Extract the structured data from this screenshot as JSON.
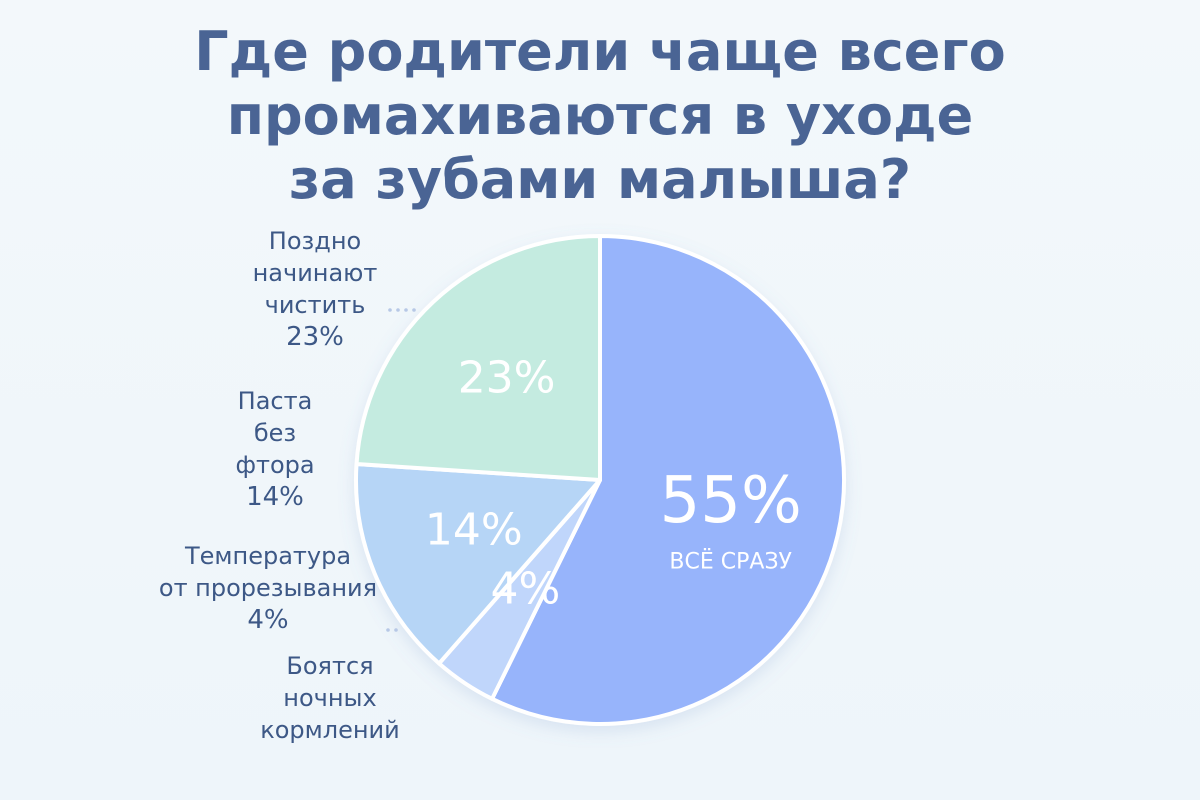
{
  "chart_data": {
    "type": "pie",
    "title_lines": [
      "Где родители чаще всего",
      "промахиваются в уходе",
      "за зубами малыша?"
    ],
    "slices": [
      {
        "name": "ВСЁ СРАЗУ",
        "value": 55,
        "value_label": "55%",
        "color": "#97b4fb"
      },
      {
        "name": "Боятся ночных кормлений",
        "value": 4,
        "value_label": "4%",
        "color": "#c0d6fb"
      },
      {
        "name": "Паста без фтора",
        "value": 14,
        "value_label": "14%",
        "color": "#b6d5f6"
      },
      {
        "name": "Поздно начинают чистить",
        "value": 23,
        "value_label": "23%",
        "color": "#c4ebe0"
      }
    ]
  },
  "side_labels": {
    "late": {
      "lines": [
        "Поздно",
        "начинают",
        "чистить"
      ],
      "pct": "23%"
    },
    "fluoride": {
      "lines": [
        "Паста",
        "без",
        "фтора"
      ],
      "pct": "14%"
    },
    "teething": {
      "lines": [
        "Температура",
        "от прорезывания"
      ],
      "pct": "4%"
    },
    "night": {
      "lines": [
        "Боятся",
        "ночных",
        "кормлений"
      ]
    }
  }
}
